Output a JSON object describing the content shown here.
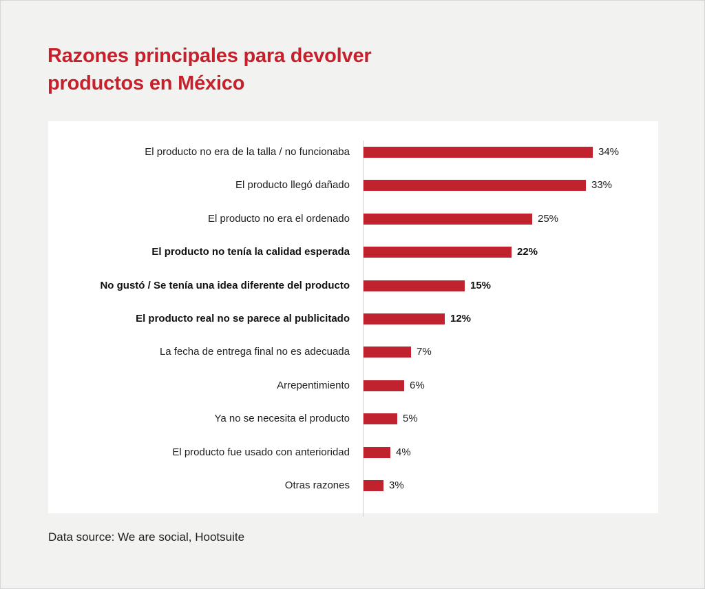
{
  "chart_data": {
    "type": "bar",
    "orientation": "horizontal",
    "title": "Razones principales para devolver productos en México",
    "categories": [
      "El producto no era de la talla / no funcionaba",
      "El producto llegó dañado",
      "El producto no era el ordenado",
      "El producto no tenía la calidad esperada",
      "No gustó / Se tenía una idea diferente del producto",
      "El producto real no se parece al publicitado",
      "La fecha de entrega final no es adecuada",
      "Arrepentimiento",
      "Ya no se necesita el producto",
      "El producto fue usado con anterioridad",
      "Otras razones"
    ],
    "values": [
      34,
      33,
      25,
      22,
      15,
      12,
      7,
      6,
      5,
      4,
      3
    ],
    "value_labels": [
      "34%",
      "33%",
      "25%",
      "22%",
      "15%",
      "12%",
      "7%",
      "6%",
      "5%",
      "4%",
      "3%"
    ],
    "highlighted": [
      false,
      false,
      false,
      true,
      true,
      true,
      false,
      false,
      false,
      false,
      false
    ],
    "xlim": [
      0,
      34
    ],
    "bar_color": "#c0232d",
    "title_color": "#c8202b",
    "grid": false,
    "source": "Data source: We are social, Hootsuite"
  }
}
